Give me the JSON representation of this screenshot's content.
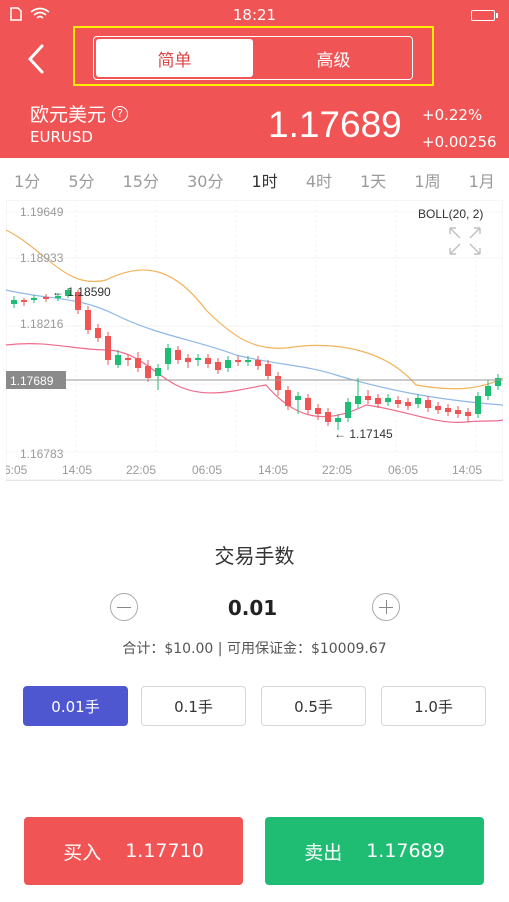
{
  "status_bar": {
    "time": "18:21"
  },
  "header": {
    "segment": {
      "simple": "简单",
      "advanced": "高级"
    },
    "pair_name": "欧元美元",
    "help_icon": "?",
    "pair_code": "EURUSD",
    "price": "1.17689",
    "change_percent": "+0.22%",
    "change_value": "+0.00256"
  },
  "timeframes": [
    "1分",
    "5分",
    "15分",
    "30分",
    "1时",
    "4时",
    "1天",
    "1周",
    "1月"
  ],
  "active_timeframe": "1时",
  "chart": {
    "indicator": "BOLL(20, 2)",
    "y_labels": [
      "1.19649",
      "1.18933",
      "1.18216",
      "1.17689",
      "1.16783"
    ],
    "current_price_label": "1.17689",
    "high_marker": "← 1.18590",
    "low_marker": "← 1.17145",
    "x_labels": [
      "6:05",
      "14:05",
      "22:05",
      "06:05",
      "14:05",
      "22:05",
      "06:05",
      "14:05"
    ]
  },
  "trade": {
    "title": "交易手数",
    "quantity": "0.01",
    "summary": "合计：$10.00 | 可用保证金：$10009.67",
    "lot_options": [
      "0.01手",
      "0.1手",
      "0.5手",
      "1.0手"
    ],
    "buy_label": "买入",
    "buy_price": "1.17710",
    "sell_label": "卖出",
    "sell_price": "1.17689"
  },
  "colors": {
    "header": "#f15454",
    "buy": "#f15454",
    "sell": "#1fbd73",
    "active_lot": "#4e57cf"
  }
}
